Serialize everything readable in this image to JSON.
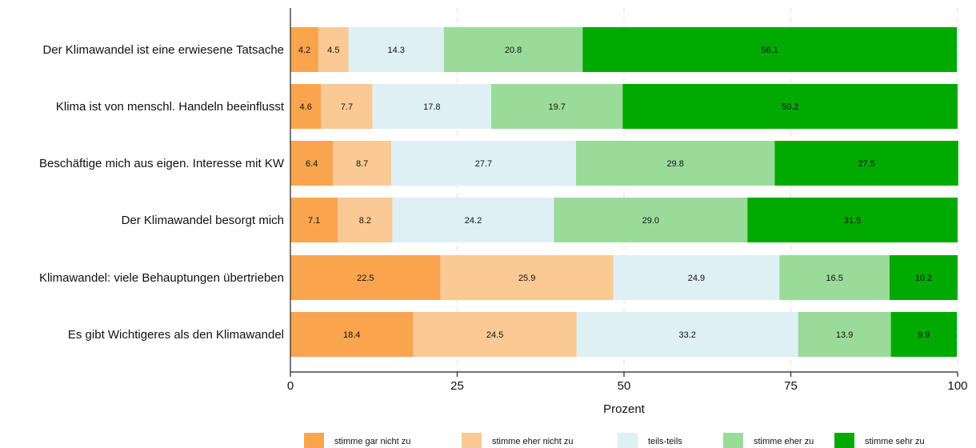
{
  "chart_data": {
    "type": "bar",
    "orientation": "horizontal",
    "stacked": true,
    "categories": [
      "Der Klimawandel ist eine erwiesene Tatsache",
      "Klima ist von menschl. Handeln beeinflusst",
      "Beschäftige mich aus eigen. Interesse mit KW",
      "Der Klimawandel besorgt mich",
      "Klimawandel: viele Behauptungen übertrieben",
      "Es gibt Wichtigeres als den Klimawandel"
    ],
    "series": [
      {
        "name": "stimme gar nicht zu",
        "color": "#F9A54E",
        "values": [
          4.2,
          4.6,
          6.4,
          7.1,
          22.5,
          18.4
        ]
      },
      {
        "name": "stimme eher nicht zu",
        "color": "#FBC994",
        "values": [
          4.5,
          7.7,
          8.7,
          8.2,
          25.9,
          24.5
        ]
      },
      {
        "name": "teils-teils",
        "color": "#DFF0F5",
        "values": [
          14.3,
          17.8,
          27.7,
          24.2,
          24.9,
          33.2
        ]
      },
      {
        "name": "stimme eher zu",
        "color": "#9ADB9A",
        "values": [
          20.8,
          19.7,
          29.8,
          29.0,
          16.5,
          13.9
        ]
      },
      {
        "name": "stimme sehr zu",
        "color": "#00AA00",
        "values": [
          56.1,
          50.2,
          27.5,
          31.5,
          10.2,
          9.9
        ]
      }
    ],
    "xlabel": "Prozent",
    "xlim": [
      0,
      100
    ],
    "xticks": [
      0,
      25,
      50,
      75,
      100
    ],
    "grid": true,
    "legend_position": "bottom"
  }
}
